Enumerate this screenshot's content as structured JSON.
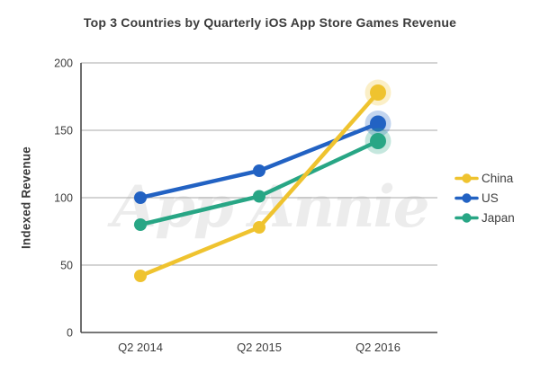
{
  "chart_data": {
    "type": "line",
    "title": "Top 3 Countries by Quarterly iOS App Store Games Revenue",
    "ylabel": "Indexed Revenue",
    "xlabel": "",
    "categories": [
      "Q2 2014",
      "Q2 2015",
      "Q2 2016"
    ],
    "series": [
      {
        "name": "China",
        "color": "#EFC32F",
        "values": [
          42,
          78,
          178
        ]
      },
      {
        "name": "US",
        "color": "#2262C3",
        "values": [
          100,
          120,
          155
        ]
      },
      {
        "name": "Japan",
        "color": "#28A685",
        "values": [
          80,
          101,
          142
        ]
      }
    ],
    "ylim": [
      0,
      200
    ],
    "yticks": [
      0,
      50,
      100,
      150,
      200
    ],
    "grid": true,
    "legend_position": "right",
    "watermark": "App Annie",
    "highlight": "last-point-halo"
  }
}
